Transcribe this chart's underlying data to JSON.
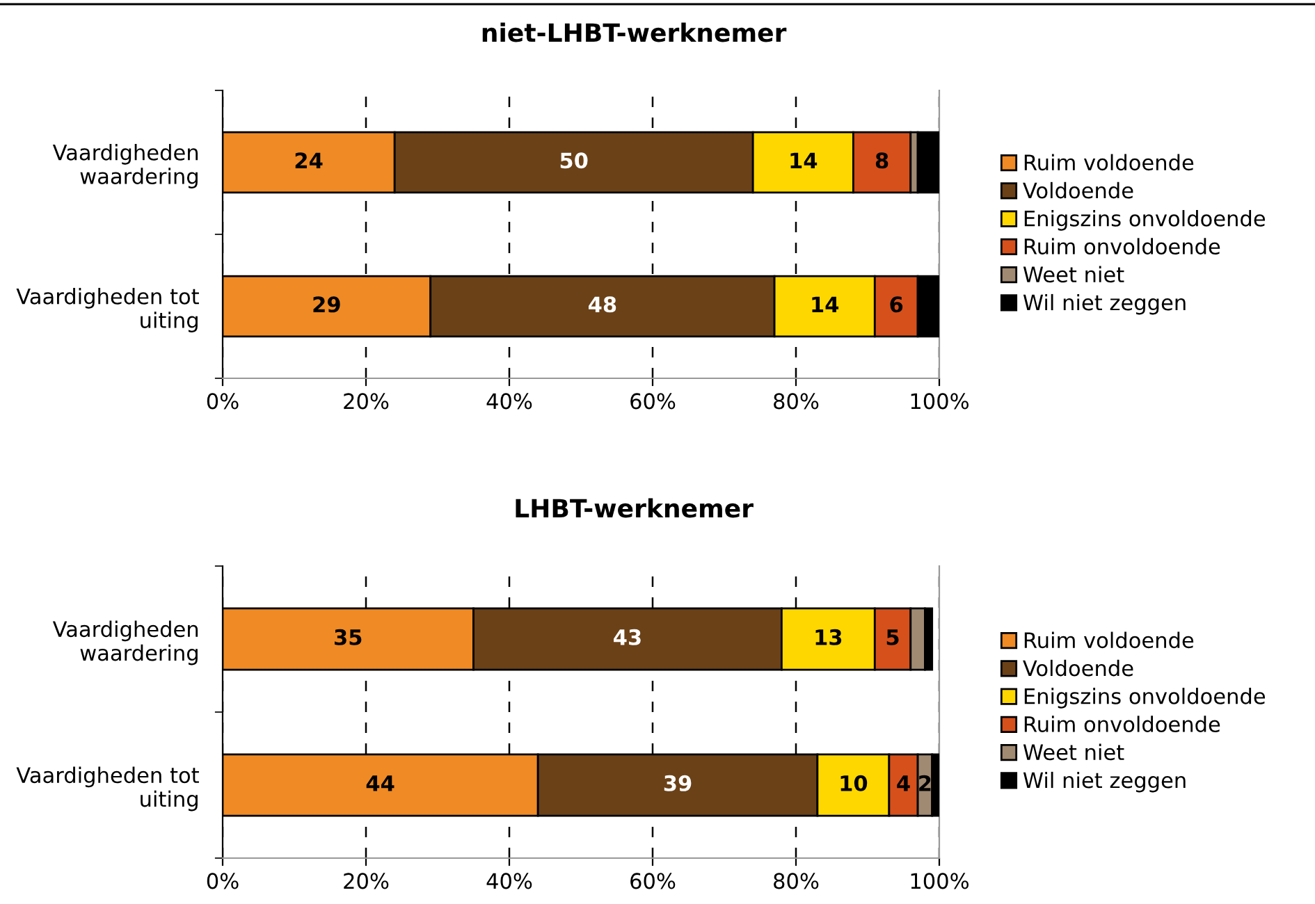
{
  "chart_data": [
    {
      "type": "bar",
      "title": "niet-LHBT-werknemer",
      "orientation": "horizontal",
      "stacked": true,
      "categories": [
        "Vaardigheden\nwaardering",
        "Vaardigheden tot\nuiting"
      ],
      "series": [
        {
          "name": "Ruim voldoende",
          "color": "#f08a24",
          "values": [
            24,
            29
          ],
          "value_labels": [
            "24",
            "29"
          ]
        },
        {
          "name": "Voldoende",
          "color": "#6b4118",
          "values": [
            50,
            48
          ],
          "value_labels": [
            "50",
            "48"
          ]
        },
        {
          "name": "Enigszins onvoldoende",
          "color": "#ffd700",
          "values": [
            14,
            14
          ],
          "value_labels": [
            "14",
            "14"
          ]
        },
        {
          "name": "Ruim onvoldoende",
          "color": "#d6501b",
          "values": [
            8,
            6
          ],
          "value_labels": [
            "8",
            "6"
          ]
        },
        {
          "name": "Weet niet",
          "color": "#a08a72",
          "values": [
            1,
            0
          ],
          "value_labels": [
            null,
            null
          ]
        },
        {
          "name": "Wil niet zeggen",
          "color": "#000000",
          "values": [
            3,
            3
          ],
          "value_labels": [
            null,
            null
          ]
        }
      ],
      "xlim": [
        0,
        100
      ],
      "xticks": [
        {
          "value": 0,
          "label": "0%"
        },
        {
          "value": 20,
          "label": "20%"
        },
        {
          "value": 40,
          "label": "40%"
        },
        {
          "value": 60,
          "label": "60%"
        },
        {
          "value": 80,
          "label": "80%"
        },
        {
          "value": 100,
          "label": "100%"
        }
      ],
      "grid": "x",
      "legend": "right"
    },
    {
      "type": "bar",
      "title": "LHBT-werknemer",
      "orientation": "horizontal",
      "stacked": true,
      "categories": [
        "Vaardigheden\nwaardering",
        "Vaardigheden tot\nuiting"
      ],
      "series": [
        {
          "name": "Ruim voldoende",
          "color": "#f08a24",
          "values": [
            35,
            44
          ],
          "value_labels": [
            "35",
            "44"
          ]
        },
        {
          "name": "Voldoende",
          "color": "#6b4118",
          "values": [
            43,
            39
          ],
          "value_labels": [
            "43",
            "39"
          ]
        },
        {
          "name": "Enigszins onvoldoende",
          "color": "#ffd700",
          "values": [
            13,
            10
          ],
          "value_labels": [
            "13",
            "10"
          ]
        },
        {
          "name": "Ruim onvoldoende",
          "color": "#d6501b",
          "values": [
            5,
            4
          ],
          "value_labels": [
            "5",
            "4"
          ]
        },
        {
          "name": "Weet niet",
          "color": "#a08a72",
          "values": [
            2,
            2
          ],
          "value_labels": [
            null,
            "2"
          ]
        },
        {
          "name": "Wil niet zeggen",
          "color": "#000000",
          "values": [
            1,
            1
          ],
          "value_labels": [
            null,
            null
          ]
        }
      ],
      "xlim": [
        0,
        100
      ],
      "xticks": [
        {
          "value": 0,
          "label": "0%"
        },
        {
          "value": 20,
          "label": "20%"
        },
        {
          "value": 40,
          "label": "40%"
        },
        {
          "value": 60,
          "label": "60%"
        },
        {
          "value": 80,
          "label": "80%"
        },
        {
          "value": 100,
          "label": "100%"
        }
      ],
      "grid": "x",
      "legend": "right"
    }
  ]
}
